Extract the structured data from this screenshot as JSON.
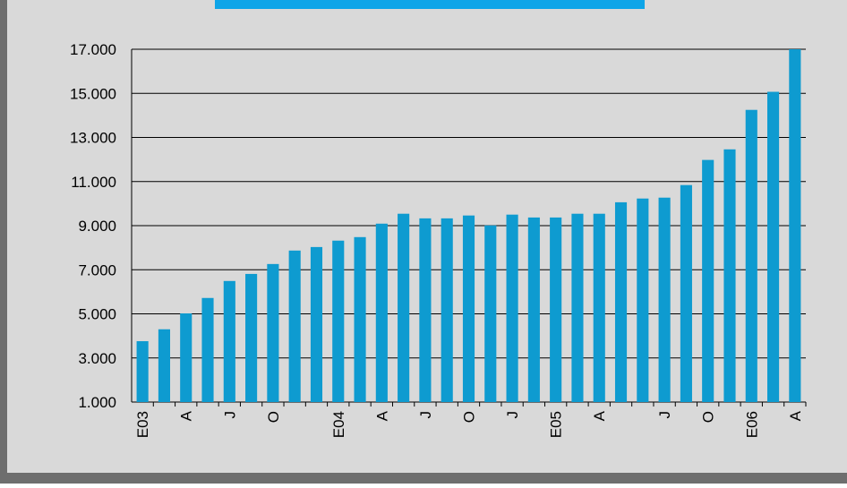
{
  "chart_data": {
    "type": "bar",
    "categories": [
      "E03",
      null,
      "A",
      null,
      "J",
      null,
      "O",
      null,
      null,
      "E04",
      null,
      "A",
      null,
      "J",
      null,
      "O",
      null,
      "J",
      null,
      "E05",
      null,
      "A",
      null,
      null,
      "J",
      null,
      "O",
      null,
      "E06",
      null,
      "A"
    ],
    "values": [
      3760,
      4300,
      5020,
      5720,
      6490,
      6810,
      7260,
      7870,
      8030,
      8320,
      8480,
      9090,
      9540,
      9330,
      9330,
      9460,
      9010,
      9500,
      9370,
      9370,
      9540,
      9540,
      10060,
      10230,
      10270,
      10840,
      11980,
      12460,
      14250,
      15070,
      17000
    ],
    "color": "#0e9bd0",
    "ylim": [
      1000,
      17000
    ],
    "yticks": [
      {
        "value": 1000,
        "label": "1.000"
      },
      {
        "value": 3000,
        "label": "3.000"
      },
      {
        "value": 5000,
        "label": "5.000"
      },
      {
        "value": 7000,
        "label": "7.000"
      },
      {
        "value": 9000,
        "label": "9.000"
      },
      {
        "value": 11000,
        "label": "11.000"
      },
      {
        "value": 13000,
        "label": "13.000"
      },
      {
        "value": 15000,
        "label": "15.000"
      },
      {
        "value": 17000,
        "label": "17.000"
      }
    ],
    "grid": true
  }
}
